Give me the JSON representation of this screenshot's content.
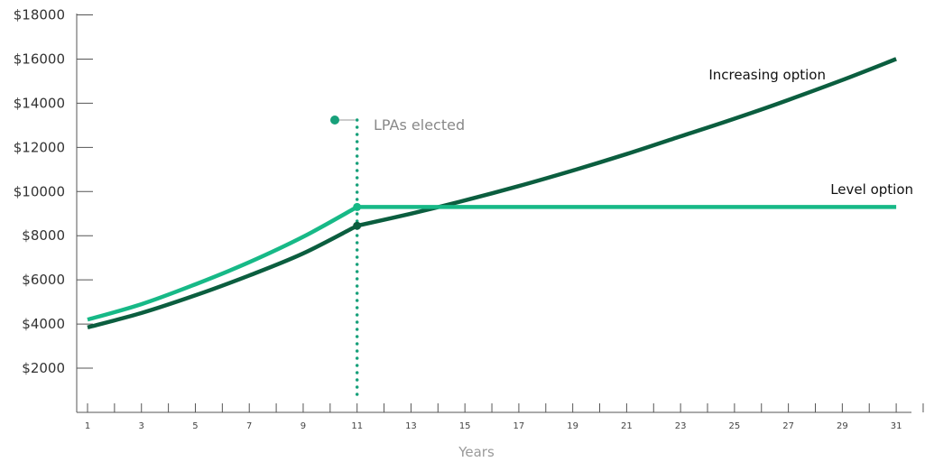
{
  "chart_data": {
    "type": "line",
    "xlabel": "Years",
    "ylabel": "",
    "xlim": [
      1,
      32
    ],
    "ylim": [
      0,
      18000
    ],
    "x_ticks": [
      1,
      3,
      5,
      7,
      9,
      11,
      13,
      15,
      17,
      19,
      21,
      23,
      25,
      27,
      29,
      31
    ],
    "y_ticks": [
      {
        "value": 2000,
        "label": "$2000"
      },
      {
        "value": 4000,
        "label": "$4000"
      },
      {
        "value": 6000,
        "label": "$6000"
      },
      {
        "value": 8000,
        "label": "$8000"
      },
      {
        "value": 10000,
        "label": "$10000"
      },
      {
        "value": 12000,
        "label": "$12000"
      },
      {
        "value": 14000,
        "label": "$14000"
      },
      {
        "value": 16000,
        "label": "$16000"
      },
      {
        "value": 18000,
        "label": "$18000"
      }
    ],
    "series": [
      {
        "name": "Increasing option",
        "color": "#0b5e3f",
        "x": [
          1,
          3,
          5,
          7,
          9,
          11,
          13,
          15,
          17,
          19,
          21,
          23,
          25,
          27,
          29,
          31
        ],
        "values": [
          3850,
          4500,
          5300,
          6200,
          7200,
          8450,
          9000,
          9600,
          10250,
          10950,
          11700,
          12500,
          13300,
          14150,
          15050,
          16000
        ]
      },
      {
        "name": "Level option",
        "color": "#17b987",
        "x": [
          1,
          3,
          5,
          7,
          9,
          11,
          13,
          15,
          17,
          19,
          21,
          23,
          25,
          27,
          29,
          31
        ],
        "values": [
          4200,
          4900,
          5800,
          6800,
          7950,
          9300,
          9300,
          9300,
          9300,
          9300,
          9300,
          9300,
          9300,
          9300,
          9300,
          9300
        ]
      }
    ],
    "annotations": [
      {
        "text": "LPAs elected",
        "x": 11,
        "color": "#17a07a"
      }
    ],
    "grid": false,
    "legend": "inline labels"
  }
}
